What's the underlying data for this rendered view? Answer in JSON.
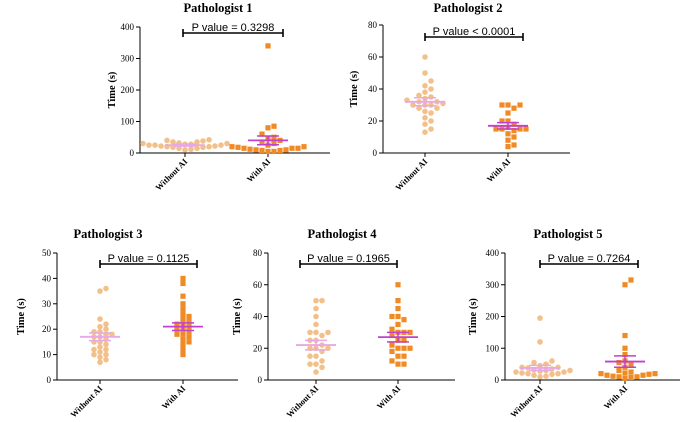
{
  "figure": {
    "colors": {
      "without_ai_points": "#f2c08a",
      "with_ai_points": "#f08a24",
      "without_ai_lines": "#e6a8e6",
      "with_ai_lines": "#c040d0"
    }
  },
  "chart_data": [
    {
      "type": "scatter",
      "title": "Pathologist 1",
      "ylabel": "Time (s)",
      "categories": [
        "Without AI",
        "With AI"
      ],
      "ylim": [
        0,
        400
      ],
      "yticks": [
        "0",
        "100",
        "200",
        "300",
        "400"
      ],
      "pvalue": "P  value = 0.3298",
      "series": [
        {
          "name": "Without AI",
          "marker": "circle",
          "values": [
            10,
            12,
            15,
            15,
            18,
            18,
            20,
            20,
            22,
            22,
            25,
            25,
            25,
            28,
            28,
            30,
            30,
            32,
            35,
            35,
            38,
            40,
            42
          ],
          "mean": 25,
          "sem": 3
        },
        {
          "name": "With AI",
          "marker": "square",
          "values": [
            5,
            5,
            8,
            8,
            10,
            10,
            12,
            15,
            15,
            15,
            18,
            20,
            20,
            25,
            30,
            35,
            40,
            45,
            50,
            60,
            80,
            85,
            340
          ],
          "mean": 40,
          "sem": 14
        }
      ]
    },
    {
      "type": "scatter",
      "title": "Pathologist 2",
      "ylabel": "Time (s)",
      "categories": [
        "Without AI",
        "With AI"
      ],
      "ylim": [
        0,
        80
      ],
      "yticks": [
        "0",
        "20",
        "40",
        "60",
        "80"
      ],
      "pvalue": "P  value < 0.0001",
      "series": [
        {
          "name": "Without AI",
          "marker": "circle",
          "values": [
            13,
            15,
            18,
            20,
            22,
            25,
            26,
            28,
            28,
            30,
            30,
            30,
            31,
            32,
            32,
            33,
            34,
            35,
            36,
            38,
            40,
            42,
            45,
            50,
            60
          ],
          "mean": 32,
          "sem": 2.5
        },
        {
          "name": "With AI",
          "marker": "square",
          "values": [
            4,
            5,
            8,
            10,
            12,
            14,
            15,
            15,
            15,
            15,
            16,
            18,
            20,
            20,
            25,
            28,
            30,
            30,
            30
          ],
          "mean": 17,
          "sem": 2
        }
      ]
    },
    {
      "type": "scatter",
      "title": "Pathologist 3",
      "ylabel": "Time (s)",
      "categories": [
        "Without AI",
        "With AI"
      ],
      "ylim": [
        0,
        50
      ],
      "yticks": [
        "0",
        "10",
        "20",
        "30",
        "40",
        "50"
      ],
      "pvalue": "P  value = 0.1125",
      "series": [
        {
          "name": "Without AI",
          "marker": "circle",
          "values": [
            7,
            8,
            9,
            10,
            10,
            11,
            12,
            12,
            13,
            14,
            15,
            15,
            16,
            17,
            17,
            18,
            18,
            19,
            19,
            20,
            21,
            22,
            24,
            35,
            36
          ],
          "mean": 17,
          "sem": 1.5
        },
        {
          "name": "With AI",
          "marker": "square",
          "values": [
            10,
            12,
            14,
            15,
            16,
            17,
            18,
            18,
            19,
            20,
            20,
            21,
            22,
            22,
            23,
            24,
            25,
            26,
            28,
            30,
            33,
            38,
            40
          ],
          "mean": 21,
          "sem": 1.5
        }
      ]
    },
    {
      "type": "scatter",
      "title": "Pathologist 4",
      "ylabel": "Time (s)",
      "categories": [
        "Without AI",
        "With AI"
      ],
      "ylim": [
        0,
        80
      ],
      "yticks": [
        "0",
        "20",
        "40",
        "60",
        "80"
      ],
      "pvalue": "P  value = 0.1965",
      "series": [
        {
          "name": "Without AI",
          "marker": "circle",
          "values": [
            5,
            8,
            10,
            10,
            12,
            15,
            15,
            18,
            20,
            20,
            20,
            22,
            25,
            25,
            28,
            30,
            30,
            30,
            35,
            40,
            45,
            50,
            50
          ],
          "mean": 22,
          "sem": 3
        },
        {
          "name": "With AI",
          "marker": "square",
          "values": [
            10,
            10,
            12,
            15,
            15,
            18,
            20,
            20,
            20,
            22,
            25,
            25,
            28,
            30,
            30,
            30,
            32,
            35,
            38,
            40,
            40,
            45,
            50,
            60
          ],
          "mean": 27,
          "sem": 3
        }
      ]
    },
    {
      "type": "scatter",
      "title": "Pathologist 5",
      "ylabel": "Time (s)",
      "categories": [
        "Without AI",
        "With AI"
      ],
      "ylim": [
        0,
        400
      ],
      "yticks": [
        "0",
        "100",
        "200",
        "300",
        "400"
      ],
      "pvalue": "P  value = 0.7264",
      "series": [
        {
          "name": "Without AI",
          "marker": "circle",
          "values": [
            10,
            12,
            15,
            18,
            20,
            20,
            22,
            25,
            25,
            28,
            30,
            30,
            32,
            35,
            38,
            40,
            40,
            45,
            50,
            55,
            60,
            120,
            195
          ],
          "mean": 38,
          "sem": 8
        },
        {
          "name": "With AI",
          "marker": "square",
          "values": [
            5,
            8,
            10,
            10,
            12,
            15,
            15,
            18,
            20,
            20,
            22,
            25,
            30,
            40,
            50,
            55,
            60,
            80,
            100,
            140,
            300,
            315
          ],
          "mean": 58,
          "sem": 18
        }
      ]
    }
  ]
}
